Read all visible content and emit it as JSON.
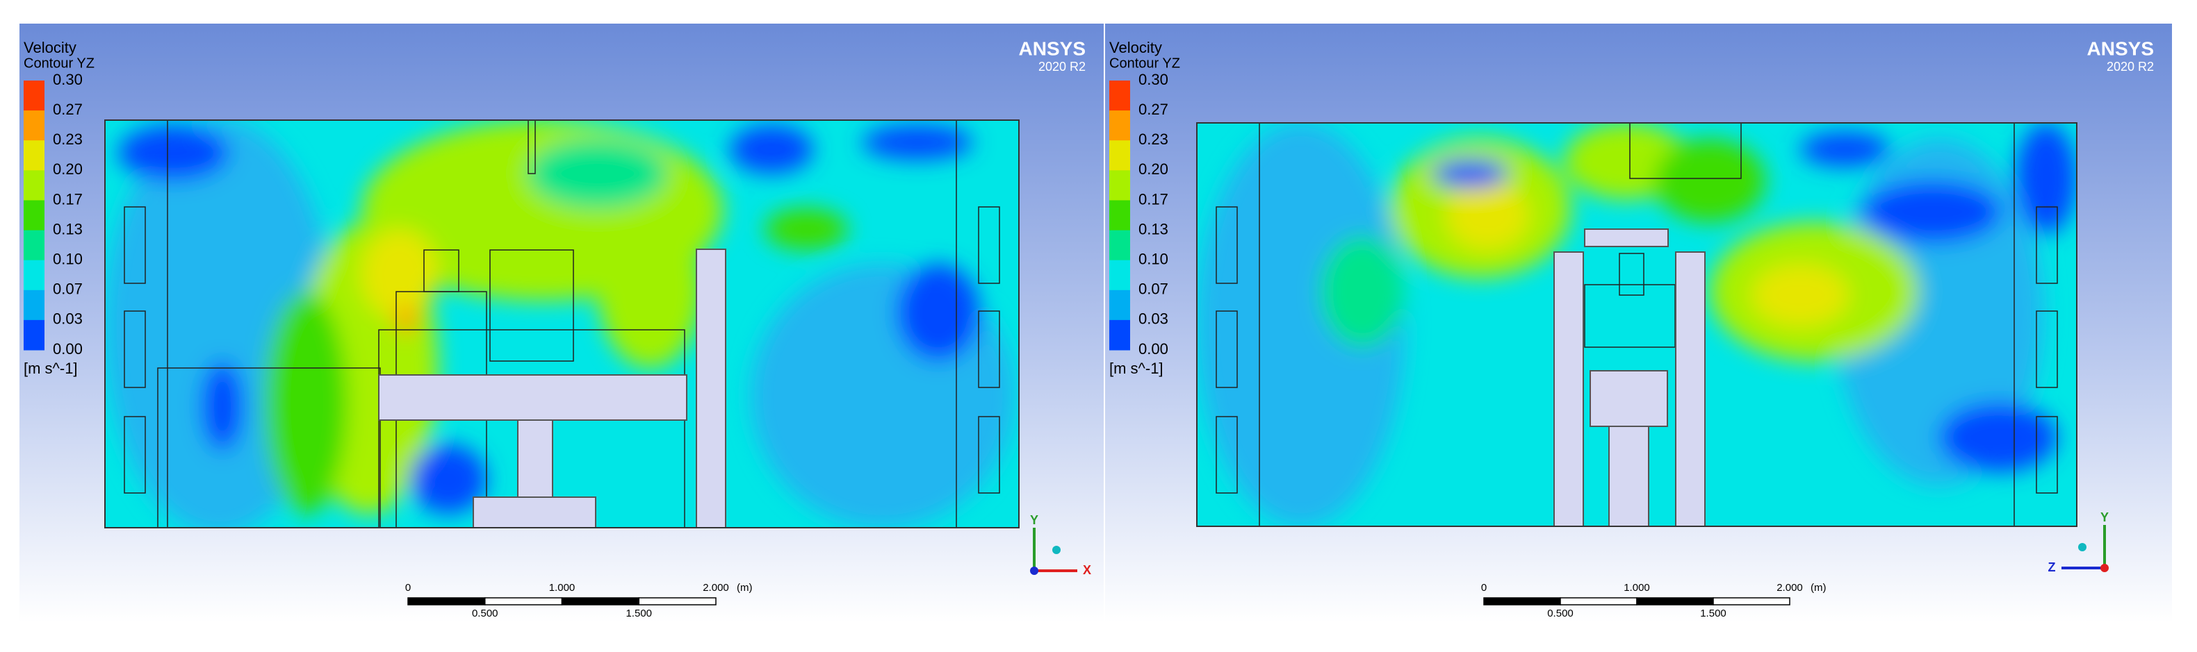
{
  "panels": [
    {
      "legend": {
        "title": "Velocity",
        "subtitle": "Contour YZ",
        "levels": [
          "0.30",
          "0.27",
          "0.23",
          "0.20",
          "0.17",
          "0.13",
          "0.10",
          "0.07",
          "0.03",
          "0.00"
        ],
        "unit": "[m s^-1]"
      },
      "brand": "ANSYS",
      "version": "2020 R2",
      "scale": {
        "ticks_top": [
          "0",
          "1.000",
          "2.000"
        ],
        "unit": "(m)",
        "ticks_bottom": [
          "0.500",
          "1.500"
        ]
      },
      "axes": {
        "vertical": "Y",
        "horizontal": "X"
      }
    },
    {
      "legend": {
        "title": "Velocity",
        "subtitle": "Contour YZ",
        "levels": [
          "0.30",
          "0.27",
          "0.23",
          "0.20",
          "0.17",
          "0.13",
          "0.10",
          "0.07",
          "0.03",
          "0.00"
        ],
        "unit": "[m s^-1]"
      },
      "brand": "ANSYS",
      "version": "2020 R2",
      "scale": {
        "ticks_top": [
          "0",
          "1.000",
          "2.000"
        ],
        "unit": "(m)",
        "ticks_bottom": [
          "0.500",
          "1.500"
        ]
      },
      "axes": {
        "vertical": "Y",
        "horizontal": "Z"
      }
    }
  ]
}
